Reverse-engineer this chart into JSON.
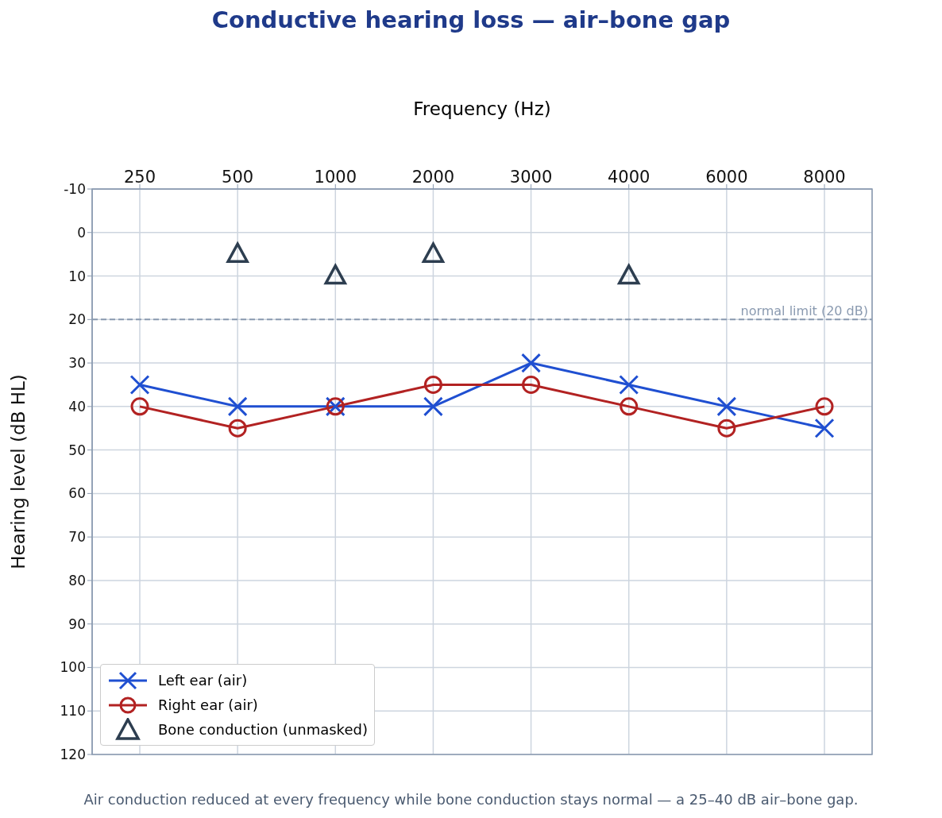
{
  "chart_data": {
    "type": "line",
    "title": "Conductive hearing loss — air–bone gap",
    "xlabel": "Frequency (Hz)",
    "ylabel": "Hearing level (dB HL)",
    "categories": [
      "250",
      "500",
      "1000",
      "2000",
      "3000",
      "4000",
      "6000",
      "8000"
    ],
    "series": [
      {
        "name": "Left ear (air)",
        "color": "#1f4fd1",
        "marker": "cross",
        "values": [
          35,
          40,
          40,
          40,
          30,
          35,
          40,
          45
        ]
      },
      {
        "name": "Right ear (air)",
        "color": "#b22222",
        "marker": "circle",
        "values": [
          40,
          45,
          40,
          35,
          35,
          40,
          45,
          40
        ]
      },
      {
        "name": "Bone conduction (unmasked)",
        "type": "scatter",
        "color": "#2d3e50",
        "marker": "triangle",
        "values": [
          null,
          5,
          10,
          5,
          null,
          10,
          null,
          null
        ]
      }
    ],
    "ylim": [
      120,
      -10
    ],
    "yticks": [
      -10,
      0,
      10,
      20,
      30,
      40,
      50,
      60,
      70,
      80,
      90,
      100,
      110,
      120
    ],
    "ref_lines": [
      {
        "axis": "y",
        "value": 20,
        "label": "normal limit (20 dB)",
        "color": "#8a9ab0",
        "line_style": "dashed"
      }
    ],
    "annotations": [
      "Air conduction reduced at every frequency while bone conduction stays normal — a 25–40 dB air–bone gap."
    ],
    "grid": true,
    "legend": "bottom left"
  }
}
